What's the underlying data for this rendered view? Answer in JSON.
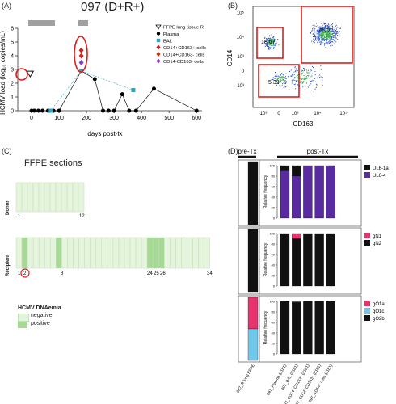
{
  "panelA": {
    "label": "(A)",
    "title": "097 (D+R+)",
    "ylabel": "HCMV load (log₁₀ copies/mL)",
    "xlabel": "days post-tx",
    "legend": [
      {
        "label": "FFPE lung tissue R",
        "marker": "triangle",
        "color": "#ffffff"
      },
      {
        "label": "Plasma",
        "marker": "circle",
        "color": "#000000"
      },
      {
        "label": "BAL",
        "marker": "square",
        "color": "#2aa9c6"
      },
      {
        "label": "CD14+CD163+ cells",
        "marker": "diamond",
        "color": "#cc2020"
      },
      {
        "label": "CD14+CD163- cells",
        "marker": "diamond",
        "color": "#d8281e"
      },
      {
        "label": "CD14-CD163- cells",
        "marker": "diamond",
        "color": "#8a3bc9"
      }
    ]
  },
  "panelB": {
    "label": "(B)",
    "ylabel": "CD14",
    "xlabel": "CD163",
    "gates": [
      "18.67",
      "65.20",
      "5.39"
    ],
    "yticks": [
      "10⁵",
      "10⁴",
      "10³",
      "0",
      "-10³"
    ],
    "xticks": [
      "-10³",
      "0",
      "10³",
      "10⁴",
      "10⁵"
    ]
  },
  "panelC": {
    "label": "(C)",
    "title": "FFPE sections",
    "donor_label": "Donor",
    "recipient_label": "Recipient",
    "donor_ticks": [
      "1",
      "12"
    ],
    "recipient_ticks": [
      "1",
      "2",
      "8",
      "24",
      "25",
      "26",
      "34"
    ],
    "legend_title": "HCMV DNAemia",
    "legend": [
      {
        "label": "negative",
        "color": "#e5f4dc"
      },
      {
        "label": "positive",
        "color": "#a6d995"
      }
    ]
  },
  "panelD": {
    "label": "(D)",
    "pretx": "pre-Tx",
    "posttx": "post-Tx",
    "ylabel": "Relative frequency",
    "rows": [
      {
        "legend": [
          {
            "label": "UL6-1a",
            "color": "#111111"
          },
          {
            "label": "UL6-4",
            "color": "#5a2aa0"
          }
        ]
      },
      {
        "legend": [
          {
            "label": "gN1",
            "color": "#e8336e"
          },
          {
            "label": "gN2",
            "color": "#111111"
          }
        ]
      },
      {
        "legend": [
          {
            "label": "gO1a",
            "color": "#e8336e"
          },
          {
            "label": "gO1c",
            "color": "#6fc8ea"
          },
          {
            "label": "gO2b",
            "color": "#111111"
          }
        ]
      }
    ],
    "categories": [
      "097_R lung FFPE",
      "097_Plasma (d181)",
      "097_BAL (d181)",
      "097_CD14⁺CD163⁺ (d181)",
      "097_CD14⁺CD163⁻ (d181)",
      "097_CD14⁻ cells (d181)"
    ],
    "yticks": [
      "100",
      "80",
      "60",
      "40",
      "20",
      "0"
    ]
  },
  "chart_data": [
    {
      "type": "scatter",
      "title": "097 (D+R+)",
      "xlabel": "days post-tx",
      "ylabel": "HCMV load (log10 copies/mL)",
      "xlim": [
        -50,
        620
      ],
      "ylim": [
        0,
        6
      ],
      "xticks": [
        0,
        100,
        200,
        300,
        400,
        500,
        600
      ],
      "yticks": [
        0,
        1,
        2,
        3,
        4,
        5,
        6
      ],
      "series": [
        {
          "name": "FFPE lung tissue R",
          "points": [
            [
              -5,
              2.7
            ]
          ]
        },
        {
          "name": "Plasma",
          "points": [
            [
              0,
              0
            ],
            [
              10,
              0
            ],
            [
              25,
              0
            ],
            [
              40,
              0
            ],
            [
              60,
              0
            ],
            [
              80,
              0
            ],
            [
              100,
              0
            ],
            [
              181,
              2.9
            ],
            [
              230,
              2.3
            ],
            [
              260,
              0
            ],
            [
              280,
              0
            ],
            [
              300,
              0
            ],
            [
              330,
              1.2
            ],
            [
              355,
              0
            ],
            [
              380,
              0
            ],
            [
              445,
              1.6
            ],
            [
              600,
              0
            ]
          ]
        },
        {
          "name": "BAL",
          "points": [
            [
              70,
              0
            ],
            [
              181,
              2.9
            ],
            [
              370,
              1.5
            ]
          ]
        },
        {
          "name": "CD14+CD163+ cells",
          "points": [
            [
              181,
              4.4
            ]
          ]
        },
        {
          "name": "CD14+CD163- cells",
          "points": [
            [
              181,
              4.0
            ]
          ]
        },
        {
          "name": "CD14-CD163- cells",
          "points": [
            [
              181,
              3.5
            ]
          ]
        }
      ]
    },
    {
      "type": "bar",
      "title": "UL6",
      "ylabel": "Relative frequency",
      "ylim": [
        0,
        100
      ],
      "categories": [
        "097_R lung FFPE",
        "097_Plasma (d181)",
        "097_BAL (d181)",
        "097_CD14+CD163+ (d181)",
        "097_CD14+CD163- (d181)",
        "097_CD14- cells (d181)"
      ],
      "series": [
        {
          "name": "UL6-1a",
          "values": [
            100,
            10,
            20,
            0,
            0,
            0
          ]
        },
        {
          "name": "UL6-4",
          "values": [
            0,
            90,
            80,
            100,
            100,
            100
          ]
        }
      ]
    },
    {
      "type": "bar",
      "title": "gN",
      "ylabel": "Relative frequency",
      "ylim": [
        0,
        100
      ],
      "categories": [
        "097_R lung FFPE",
        "097_Plasma (d181)",
        "097_BAL (d181)",
        "097_CD14+CD163+ (d181)",
        "097_CD14+CD163- (d181)",
        "097_CD14- cells (d181)"
      ],
      "series": [
        {
          "name": "gN1",
          "values": [
            0,
            0,
            10,
            0,
            0,
            0
          ]
        },
        {
          "name": "gN2",
          "values": [
            100,
            100,
            90,
            100,
            100,
            100
          ]
        }
      ]
    },
    {
      "type": "bar",
      "title": "gO",
      "ylabel": "Relative frequency",
      "ylim": [
        0,
        100
      ],
      "categories": [
        "097_R lung FFPE",
        "097_Plasma (d181)",
        "097_BAL (d181)",
        "097_CD14+CD163+ (d181)",
        "097_CD14+CD163- (d181)",
        "097_CD14- cells (d181)"
      ],
      "series": [
        {
          "name": "gO1a",
          "values": [
            50,
            0,
            2,
            0,
            0,
            0
          ]
        },
        {
          "name": "gO1c",
          "values": [
            50,
            0,
            0,
            0,
            0,
            0
          ]
        },
        {
          "name": "gO2b",
          "values": [
            0,
            100,
            98,
            100,
            100,
            100
          ]
        }
      ]
    }
  ]
}
